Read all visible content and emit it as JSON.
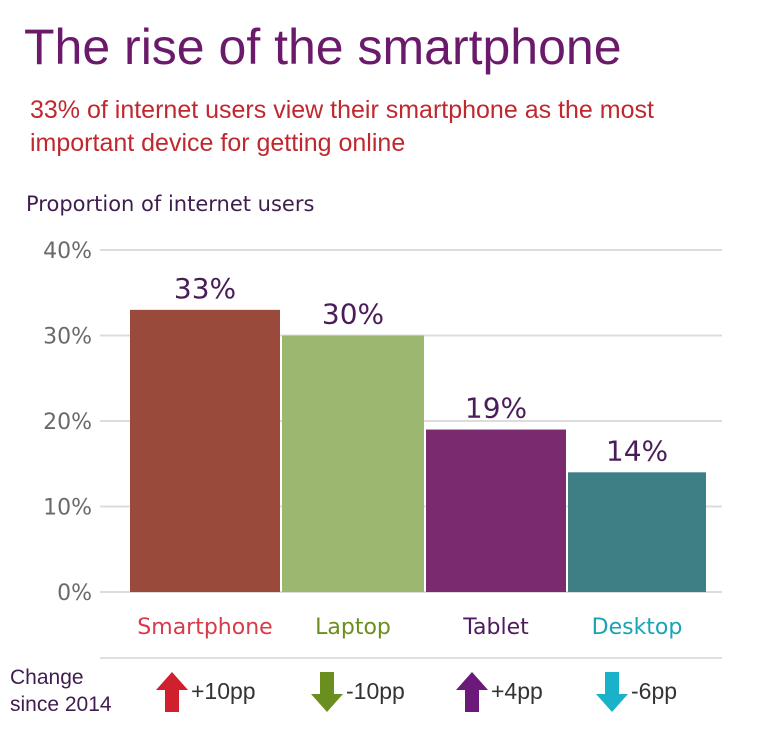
{
  "title": "The rise of the smartphone",
  "subtitle": "33% of internet users view their smartphone as the most important device for getting online",
  "chart_data": {
    "type": "bar",
    "ylabel": "Proportion of internet users",
    "ylim": [
      0,
      40
    ],
    "yticks": [
      "0%",
      "10%",
      "20%",
      "30%",
      "40%"
    ],
    "grid": true,
    "categories": [
      "Smartphone",
      "Laptop",
      "Tablet",
      "Desktop"
    ],
    "values": [
      33,
      30,
      19,
      14
    ],
    "value_labels": [
      "33%",
      "30%",
      "19%",
      "14%"
    ],
    "category_colors": [
      "#d73a4a",
      "#6b8f1e",
      "#4f1a5e",
      "#1aa3b5"
    ],
    "bar_colors": [
      "#9a4a3a",
      "#9cb870",
      "#7a2a6e",
      "#3e7f86"
    ]
  },
  "change": {
    "label": "Change\nsince 2014",
    "items": [
      {
        "direction": "up",
        "text": "+10pp",
        "color": "#d0202e"
      },
      {
        "direction": "down",
        "text": "-10pp",
        "color": "#6b8f1e"
      },
      {
        "direction": "up",
        "text": "+4pp",
        "color": "#6b1a7a"
      },
      {
        "direction": "down",
        "text": "-6pp",
        "color": "#1ab2c9"
      }
    ]
  }
}
